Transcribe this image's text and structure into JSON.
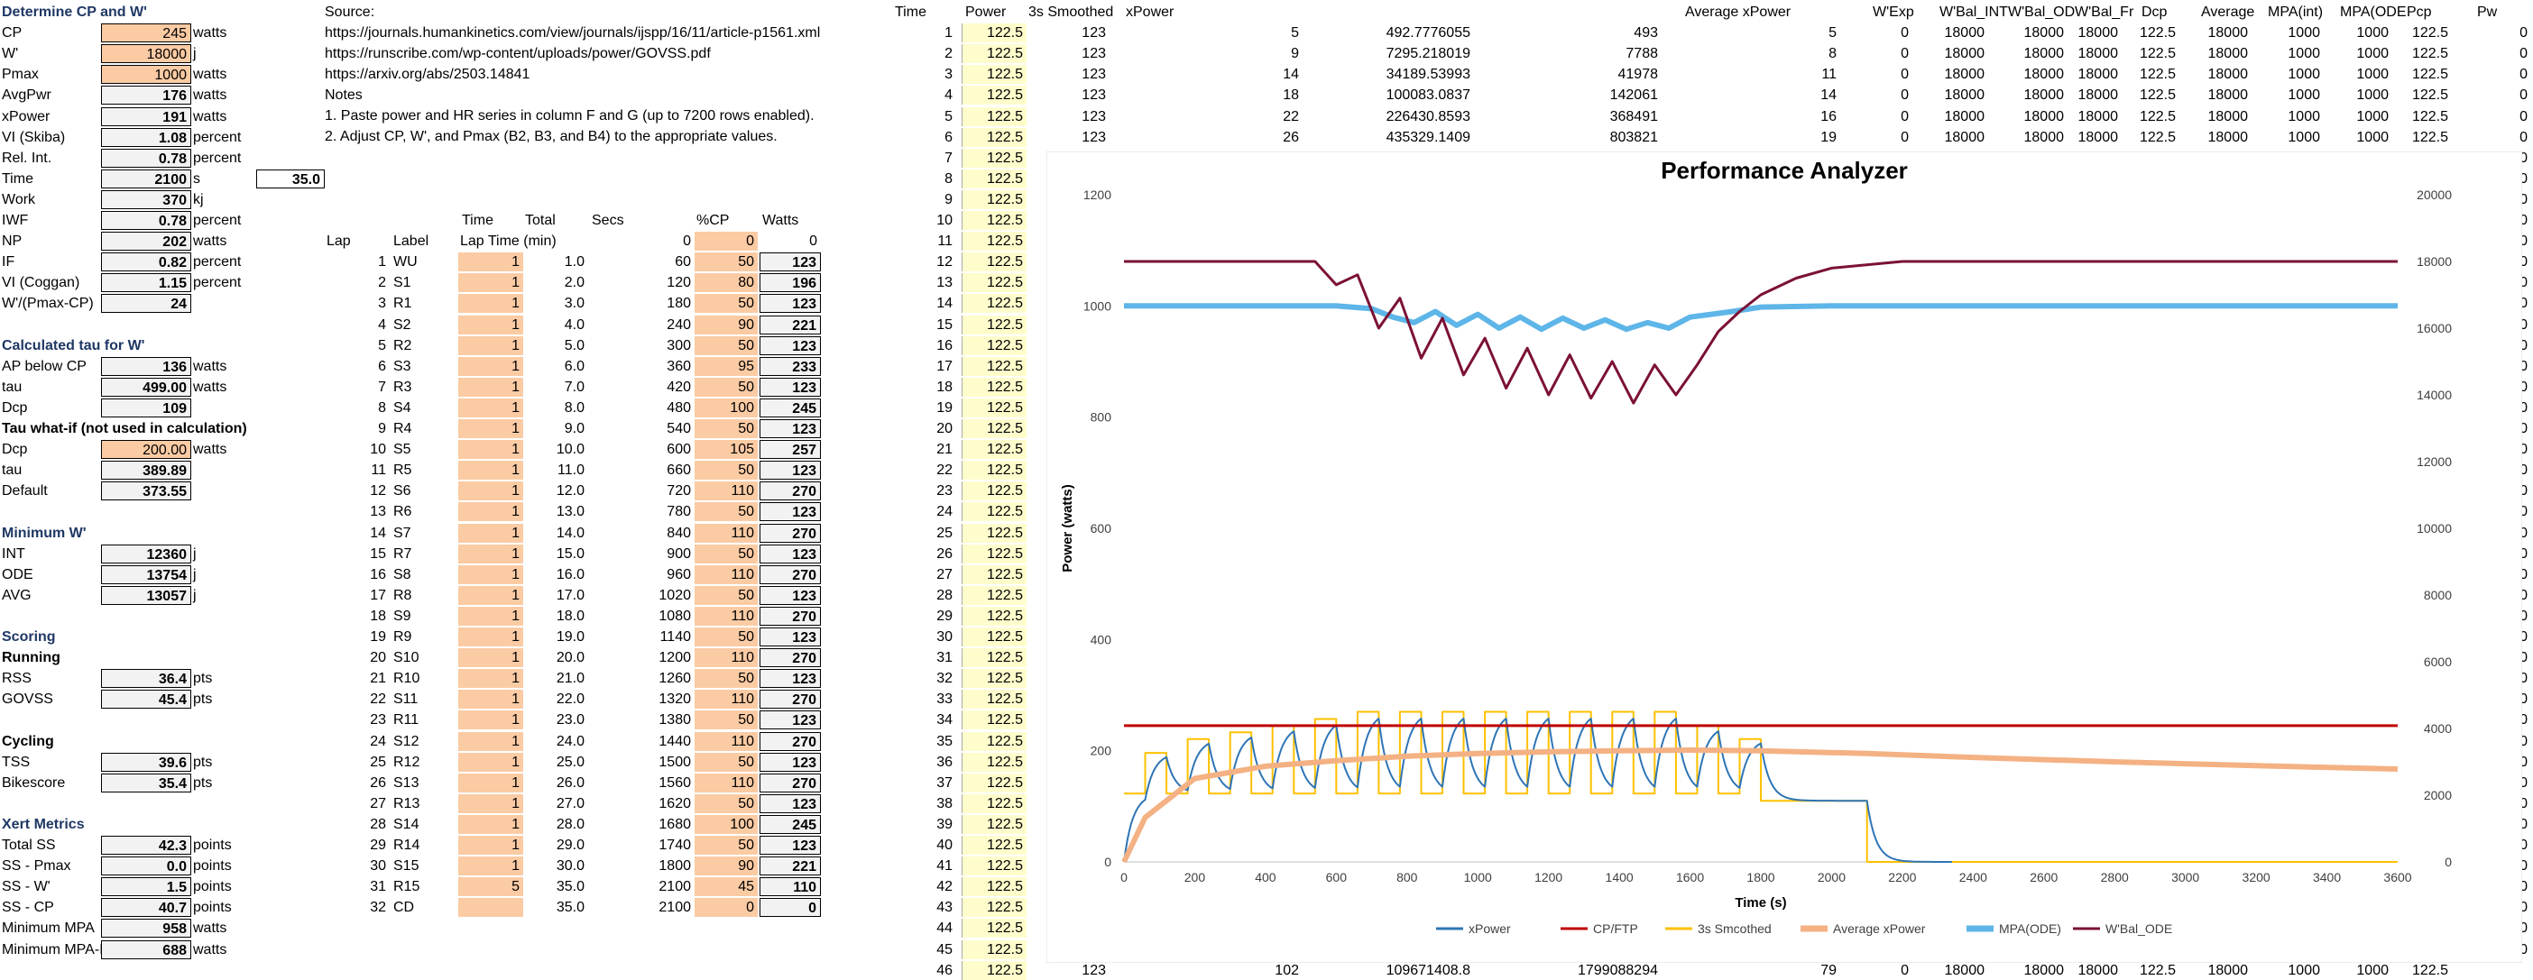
{
  "sections": {
    "cp": "Determine CP and W'",
    "tau": "Calculated tau for W'",
    "minw": "Minimum W'",
    "scoring": "Scoring",
    "xert": "Xert Metrics"
  },
  "left_rows": [
    {
      "label": "CP",
      "value": "245",
      "unit": "watts",
      "style": "orange"
    },
    {
      "label": "W'",
      "value": "18000",
      "unit": "j",
      "style": "orange"
    },
    {
      "label": "Pmax",
      "value": "1000",
      "unit": "watts",
      "style": "orange"
    },
    {
      "label": "AvgPwr",
      "value": "176",
      "unit": "watts",
      "style": "grey"
    },
    {
      "label": "xPower",
      "value": "191",
      "unit": "watts",
      "style": "grey"
    },
    {
      "label": "VI (Skiba)",
      "value": "1.08",
      "unit": "percent",
      "style": "grey"
    },
    {
      "label": "Rel. Int.",
      "value": "0.78",
      "unit": "percent",
      "style": "grey"
    },
    {
      "label": "Time",
      "value": "2100",
      "unit": "s",
      "style": "grey"
    },
    {
      "label": "Work",
      "value": "370",
      "unit": "kj",
      "style": "grey"
    },
    {
      "label": "IWF",
      "value": "0.78",
      "unit": "percent",
      "style": "grey"
    },
    {
      "label": "NP",
      "value": "202",
      "unit": "watts",
      "style": "grey"
    },
    {
      "label": "IF",
      "value": "0.82",
      "unit": "percent",
      "style": "grey"
    },
    {
      "label": "VI (Coggan)",
      "value": "1.15",
      "unit": "percent",
      "style": "grey"
    },
    {
      "label": "W'/(Pmax-CP)",
      "value": "24",
      "unit": "",
      "style": "grey"
    },
    {
      "label": "",
      "value": "",
      "unit": "",
      "style": "none"
    },
    {
      "label": "Calculated tau for W'",
      "value": "",
      "unit": "",
      "style": "heading"
    },
    {
      "label": "AP below CP",
      "value": "136",
      "unit": "watts",
      "style": "grey"
    },
    {
      "label": "tau",
      "value": "499.00",
      "unit": "watts",
      "style": "grey"
    },
    {
      "label": "Dcp",
      "value": "109",
      "unit": "",
      "style": "grey"
    },
    {
      "label": "Tau what-if (not used in calculation)",
      "value": "",
      "unit": "",
      "style": "bold"
    },
    {
      "label": "Dcp",
      "value": "200.00",
      "unit": "watts",
      "style": "orange"
    },
    {
      "label": "tau",
      "value": "389.89",
      "unit": "",
      "style": "grey"
    },
    {
      "label": "Default",
      "value": "373.55",
      "unit": "",
      "style": "grey"
    },
    {
      "label": "",
      "value": "",
      "unit": "",
      "style": "none"
    },
    {
      "label": "Minimum W'",
      "value": "",
      "unit": "",
      "style": "heading"
    },
    {
      "label": "INT",
      "value": "12360",
      "unit": "j",
      "style": "grey"
    },
    {
      "label": "ODE",
      "value": "13754",
      "unit": "j",
      "style": "grey"
    },
    {
      "label": "AVG",
      "value": "13057",
      "unit": "j",
      "style": "grey"
    },
    {
      "label": "",
      "value": "",
      "unit": "",
      "style": "none"
    },
    {
      "label": "Scoring",
      "value": "",
      "unit": "",
      "style": "heading"
    },
    {
      "label": "Running",
      "value": "",
      "unit": "",
      "style": "bold"
    },
    {
      "label": "RSS",
      "value": "36.4",
      "unit": "pts",
      "style": "grey"
    },
    {
      "label": "GOVSS",
      "value": "45.4",
      "unit": "pts",
      "style": "grey"
    },
    {
      "label": "",
      "value": "",
      "unit": "",
      "style": "none"
    },
    {
      "label": "Cycling",
      "value": "",
      "unit": "",
      "style": "bold"
    },
    {
      "label": "TSS",
      "value": "39.6",
      "unit": "pts",
      "style": "grey"
    },
    {
      "label": "Bikescore",
      "value": "35.4",
      "unit": "pts",
      "style": "grey"
    },
    {
      "label": "",
      "value": "",
      "unit": "",
      "style": "none"
    },
    {
      "label": "Xert Metrics",
      "value": "",
      "unit": "",
      "style": "heading"
    },
    {
      "label": "Total SS",
      "value": "42.3",
      "unit": "points",
      "style": "grey"
    },
    {
      "label": "SS - Pmax",
      "value": "0.0",
      "unit": "points",
      "style": "grey"
    },
    {
      "label": "SS - W'",
      "value": "1.5",
      "unit": "points",
      "style": "grey"
    },
    {
      "label": "SS - CP",
      "value": "40.7",
      "unit": "points",
      "style": "grey"
    },
    {
      "label": "Minimum MPA",
      "value": "958",
      "unit": "watts",
      "style": "grey"
    },
    {
      "label": "Minimum MPA-I",
      "value": "688",
      "unit": "watts",
      "style": "grey"
    }
  ],
  "time_side_value": "35.0",
  "source": {
    "label": "Source:",
    "links": [
      "https://journals.humankinetics.com/view/journals/ijspp/16/11/article-p1561.xml",
      "https://runscribe.com/wp-content/uploads/power/GOVSS.pdf",
      "https://arxiv.org/abs/2503.14841"
    ],
    "notes_label": "Notes",
    "notes": [
      "1. Paste power and HR series in column F and G (up to 7200 rows enabled).",
      "2. Adjust CP, W', and Pmax  (B2, B3, and B4) to the appropriate values."
    ]
  },
  "lap_table": {
    "top_headers": {
      "time": "Time",
      "total": "Total",
      "secs": "Secs",
      "pct": "%CP",
      "watts": "Watts"
    },
    "headers": {
      "lap": "Lap",
      "label": "Label",
      "laptime": "Lap Time (min)"
    },
    "zero_row": {
      "secs": "0",
      "pct": "0",
      "watts": "0"
    },
    "rows": [
      [
        "1",
        "WU",
        "1",
        "1.0",
        "60",
        "50",
        "123"
      ],
      [
        "2",
        "S1",
        "1",
        "2.0",
        "120",
        "80",
        "196"
      ],
      [
        "3",
        "R1",
        "1",
        "3.0",
        "180",
        "50",
        "123"
      ],
      [
        "4",
        "S2",
        "1",
        "4.0",
        "240",
        "90",
        "221"
      ],
      [
        "5",
        "R2",
        "1",
        "5.0",
        "300",
        "50",
        "123"
      ],
      [
        "6",
        "S3",
        "1",
        "6.0",
        "360",
        "95",
        "233"
      ],
      [
        "7",
        "R3",
        "1",
        "7.0",
        "420",
        "50",
        "123"
      ],
      [
        "8",
        "S4",
        "1",
        "8.0",
        "480",
        "100",
        "245"
      ],
      [
        "9",
        "R4",
        "1",
        "9.0",
        "540",
        "50",
        "123"
      ],
      [
        "10",
        "S5",
        "1",
        "10.0",
        "600",
        "105",
        "257"
      ],
      [
        "11",
        "R5",
        "1",
        "11.0",
        "660",
        "50",
        "123"
      ],
      [
        "12",
        "S6",
        "1",
        "12.0",
        "720",
        "110",
        "270"
      ],
      [
        "13",
        "R6",
        "1",
        "13.0",
        "780",
        "50",
        "123"
      ],
      [
        "14",
        "S7",
        "1",
        "14.0",
        "840",
        "110",
        "270"
      ],
      [
        "15",
        "R7",
        "1",
        "15.0",
        "900",
        "50",
        "123"
      ],
      [
        "16",
        "S8",
        "1",
        "16.0",
        "960",
        "110",
        "270"
      ],
      [
        "17",
        "R8",
        "1",
        "17.0",
        "1020",
        "50",
        "123"
      ],
      [
        "18",
        "S9",
        "1",
        "18.0",
        "1080",
        "110",
        "270"
      ],
      [
        "19",
        "R9",
        "1",
        "19.0",
        "1140",
        "50",
        "123"
      ],
      [
        "20",
        "S10",
        "1",
        "20.0",
        "1200",
        "110",
        "270"
      ],
      [
        "21",
        "R10",
        "1",
        "21.0",
        "1260",
        "50",
        "123"
      ],
      [
        "22",
        "S11",
        "1",
        "22.0",
        "1320",
        "110",
        "270"
      ],
      [
        "23",
        "R11",
        "1",
        "23.0",
        "1380",
        "50",
        "123"
      ],
      [
        "24",
        "S12",
        "1",
        "24.0",
        "1440",
        "110",
        "270"
      ],
      [
        "25",
        "R12",
        "1",
        "25.0",
        "1500",
        "50",
        "123"
      ],
      [
        "26",
        "S13",
        "1",
        "26.0",
        "1560",
        "110",
        "270"
      ],
      [
        "27",
        "R13",
        "1",
        "27.0",
        "1620",
        "50",
        "123"
      ],
      [
        "28",
        "S14",
        "1",
        "28.0",
        "1680",
        "100",
        "245"
      ],
      [
        "29",
        "R14",
        "1",
        "29.0",
        "1740",
        "50",
        "123"
      ],
      [
        "30",
        "S15",
        "1",
        "30.0",
        "1800",
        "90",
        "221"
      ],
      [
        "31",
        "R15",
        "5",
        "35.0",
        "2100",
        "45",
        "110"
      ],
      [
        "32",
        "CD",
        "",
        "35.0",
        "2100",
        "0",
        "0"
      ]
    ]
  },
  "right_headers": {
    "time": "Time",
    "power": "Power",
    "smoothed": "3s Smoothed",
    "xpower": "xPower",
    "avg_xpower": "Average xPower",
    "wexp": "W'Exp",
    "wbal_int": "W'Bal_INT",
    "wbal_od": "W'Bal_OD",
    "wbal_fr": "W'Bal_Fr",
    "dcp": "Dcp",
    "average": "Average",
    "mpa_int": "MPA(int)",
    "mpa_ode": "MPA(ODE",
    "pcp": "Pcp",
    "pw": "Pw"
  },
  "data_rows": [
    {
      "time": "1",
      "power": "122.5",
      "smoothed": "123",
      "c1": "5",
      "c2": "492.7776055",
      "c3": "493",
      "c4": "5",
      "wexp": "0",
      "wi": "18000",
      "wo": "18000",
      "wf": "18000",
      "dcp": "122.5",
      "avg": "18000",
      "mi": "1000",
      "mo": "1000",
      "pcp": "122.5",
      "pw": "0"
    },
    {
      "time": "2",
      "power": "122.5",
      "smoothed": "123",
      "c1": "9",
      "c2": "7295.218019",
      "c3": "7788",
      "c4": "8",
      "wexp": "0",
      "wi": "18000",
      "wo": "18000",
      "wf": "18000",
      "dcp": "122.5",
      "avg": "18000",
      "mi": "1000",
      "mo": "1000",
      "pcp": "122.5",
      "pw": "0"
    },
    {
      "time": "3",
      "power": "122.5",
      "smoothed": "123",
      "c1": "14",
      "c2": "34189.53993",
      "c3": "41978",
      "c4": "11",
      "wexp": "0",
      "wi": "18000",
      "wo": "18000",
      "wf": "18000",
      "dcp": "122.5",
      "avg": "18000",
      "mi": "1000",
      "mo": "1000",
      "pcp": "122.5",
      "pw": "0"
    },
    {
      "time": "4",
      "power": "122.5",
      "smoothed": "123",
      "c1": "18",
      "c2": "100083.0837",
      "c3": "142061",
      "c4": "14",
      "wexp": "0",
      "wi": "18000",
      "wo": "18000",
      "wf": "18000",
      "dcp": "122.5",
      "avg": "18000",
      "mi": "1000",
      "mo": "1000",
      "pcp": "122.5",
      "pw": "0"
    },
    {
      "time": "5",
      "power": "122.5",
      "smoothed": "123",
      "c1": "22",
      "c2": "226430.8593",
      "c3": "368491",
      "c4": "16",
      "wexp": "0",
      "wi": "18000",
      "wo": "18000",
      "wf": "18000",
      "dcp": "122.5",
      "avg": "18000",
      "mi": "1000",
      "mo": "1000",
      "pcp": "122.5",
      "pw": "0"
    },
    {
      "time": "6",
      "power": "122.5",
      "smoothed": "123",
      "c1": "26",
      "c2": "435329.1409",
      "c3": "803821",
      "c4": "19",
      "wexp": "0",
      "wi": "18000",
      "wo": "18000",
      "wf": "18000",
      "dcp": "122.5",
      "avg": "18000",
      "mi": "1000",
      "mo": "1000",
      "pcp": "122.5",
      "pw": "0"
    }
  ],
  "power_col_value": "122.5",
  "time_numbers_start": 7,
  "time_numbers_end": 45,
  "last_row": {
    "time": "46",
    "power": "122.5",
    "smoothed": "123",
    "c1": "102",
    "c2": "109671408.8",
    "c3": "1799088294",
    "c4": "79",
    "wexp": "0",
    "wi": "18000",
    "wo": "18000",
    "wf": "18000",
    "dcp": "122.5",
    "avg": "18000",
    "mi": "1000",
    "mo": "1000",
    "pcp": "122.5"
  },
  "right_edge_zero": "0",
  "chart_data": {
    "type": "line",
    "title": "Performance Analyzer",
    "xlabel": "Time (s)",
    "ylabel": "Power (watts)",
    "xlim": [
      0,
      3600
    ],
    "ylim": [
      0,
      1200
    ],
    "y2lim": [
      0,
      20000
    ],
    "xticks": [
      0,
      200,
      400,
      600,
      800,
      1000,
      1200,
      1400,
      1600,
      1800,
      2000,
      2200,
      2400,
      2600,
      2800,
      3000,
      3200,
      3400,
      3600
    ],
    "yticks": [
      0,
      200,
      400,
      600,
      800,
      1000,
      1200
    ],
    "y2ticks": [
      0,
      2000,
      4000,
      6000,
      8000,
      10000,
      12000,
      14000,
      16000,
      18000,
      20000
    ],
    "grid": false,
    "legend_position": "bottom",
    "colors": {
      "xpower": "#2e75b6",
      "cp": "#c00000",
      "smoothed": "#ffc000",
      "avg_xpower": "#f4b183",
      "mpa": "#5eb5e8",
      "wbal": "#7b1134"
    },
    "series": [
      {
        "name": "xPower",
        "axis": "left"
      },
      {
        "name": "CP/FTP",
        "axis": "left",
        "value": 245
      },
      {
        "name": "3s Smcothed",
        "axis": "left"
      },
      {
        "name": "Average xPower",
        "axis": "left"
      },
      {
        "name": "MPA(ODE)",
        "axis": "left"
      },
      {
        "name": "W'Bal_ODE",
        "axis": "right"
      }
    ],
    "power_profile": {
      "laps_start_s": [
        0,
        60,
        120,
        180,
        240,
        300,
        360,
        420,
        480,
        540,
        600,
        660,
        720,
        780,
        840,
        900,
        960,
        1020,
        1080,
        1140,
        1200,
        1260,
        1320,
        1380,
        1440,
        1500,
        1560,
        1620,
        1680,
        1740,
        1800,
        2100
      ],
      "watts": [
        123,
        196,
        123,
        221,
        123,
        233,
        123,
        245,
        123,
        257,
        123,
        270,
        123,
        270,
        123,
        270,
        123,
        270,
        123,
        270,
        123,
        270,
        123,
        270,
        123,
        270,
        123,
        245,
        123,
        221,
        110,
        0
      ]
    },
    "avg_xpower_points": [
      [
        0,
        0
      ],
      [
        60,
        80
      ],
      [
        200,
        150
      ],
      [
        400,
        172
      ],
      [
        600,
        182
      ],
      [
        800,
        190
      ],
      [
        1000,
        195
      ],
      [
        1200,
        198
      ],
      [
        1400,
        200
      ],
      [
        1600,
        201
      ],
      [
        1800,
        200
      ],
      [
        2100,
        195
      ],
      [
        2400,
        188
      ],
      [
        2800,
        180
      ],
      [
        3200,
        173
      ],
      [
        3600,
        167
      ]
    ],
    "mpa_points": [
      [
        0,
        1000
      ],
      [
        600,
        1000
      ],
      [
        700,
        995
      ],
      [
        760,
        980
      ],
      [
        820,
        970
      ],
      [
        880,
        990
      ],
      [
        940,
        965
      ],
      [
        1000,
        985
      ],
      [
        1060,
        960
      ],
      [
        1120,
        980
      ],
      [
        1180,
        958
      ],
      [
        1240,
        978
      ],
      [
        1300,
        960
      ],
      [
        1360,
        975
      ],
      [
        1420,
        958
      ],
      [
        1480,
        970
      ],
      [
        1540,
        960
      ],
      [
        1600,
        980
      ],
      [
        1660,
        985
      ],
      [
        1720,
        990
      ],
      [
        1800,
        998
      ],
      [
        2000,
        1000
      ],
      [
        3600,
        1000
      ]
    ],
    "wbal_points": [
      [
        0,
        18000
      ],
      [
        540,
        18000
      ],
      [
        600,
        17300
      ],
      [
        660,
        17600
      ],
      [
        720,
        16000
      ],
      [
        780,
        16900
      ],
      [
        840,
        15100
      ],
      [
        900,
        16300
      ],
      [
        960,
        14600
      ],
      [
        1020,
        15700
      ],
      [
        1080,
        14200
      ],
      [
        1140,
        15400
      ],
      [
        1200,
        14000
      ],
      [
        1260,
        15200
      ],
      [
        1320,
        13900
      ],
      [
        1380,
        15000
      ],
      [
        1440,
        13754
      ],
      [
        1500,
        14900
      ],
      [
        1560,
        14000
      ],
      [
        1620,
        14900
      ],
      [
        1680,
        15900
      ],
      [
        1740,
        16500
      ],
      [
        1800,
        17000
      ],
      [
        1900,
        17500
      ],
      [
        2000,
        17800
      ],
      [
        2200,
        18000
      ],
      [
        3600,
        18000
      ]
    ]
  }
}
